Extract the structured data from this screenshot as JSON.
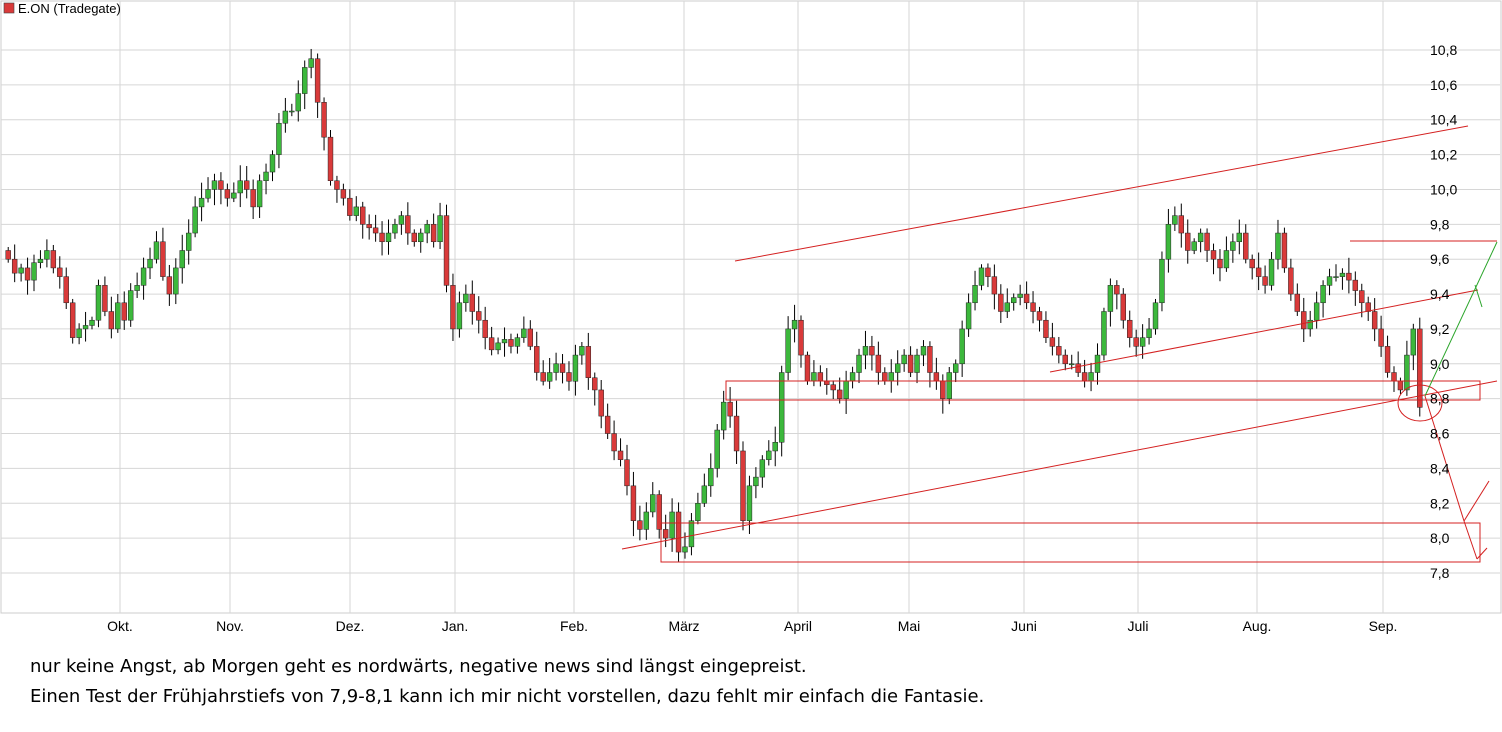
{
  "chart_data": {
    "type": "candlestick",
    "title": "E.ON (Tradegate)",
    "legend_color": "#d93a3a",
    "colors": {
      "up": "#3cb83c",
      "down": "#d93a3a",
      "wick": "#000000",
      "grid": "#d6d6d6",
      "drawing": "#d42020",
      "arrow_up": "#2aa52a"
    },
    "ylim": [
      7.65,
      10.95
    ],
    "y_ticks": [
      "10,8",
      "10,6",
      "10,4",
      "10,2",
      "10,0",
      "9,8",
      "9,6",
      "9,4",
      "9,2",
      "9,0",
      "8,8",
      "8,6",
      "8,4",
      "8,2",
      "8,0",
      "7,8"
    ],
    "y_tick_values": [
      10.8,
      10.6,
      10.4,
      10.2,
      10.0,
      9.8,
      9.6,
      9.4,
      9.2,
      9.0,
      8.8,
      8.6,
      8.4,
      8.2,
      8.0,
      7.8
    ],
    "x_ticks": [
      "Okt.",
      "Nov.",
      "Dez.",
      "Jan.",
      "Feb.",
      "März",
      "April",
      "Mai",
      "Juni",
      "Juli",
      "Aug.",
      "Sep."
    ],
    "closes": [
      9.6,
      9.52,
      9.55,
      9.48,
      9.58,
      9.6,
      9.65,
      9.55,
      9.5,
      9.35,
      9.15,
      9.2,
      9.22,
      9.25,
      9.45,
      9.3,
      9.2,
      9.35,
      9.25,
      9.42,
      9.45,
      9.55,
      9.6,
      9.7,
      9.5,
      9.4,
      9.55,
      9.65,
      9.75,
      9.9,
      9.95,
      10.0,
      10.05,
      10.0,
      9.95,
      9.98,
      10.05,
      10.0,
      9.9,
      10.05,
      10.1,
      10.2,
      10.38,
      10.45,
      10.45,
      10.55,
      10.7,
      10.75,
      10.5,
      10.3,
      10.05,
      10.0,
      9.95,
      9.85,
      9.9,
      9.8,
      9.78,
      9.75,
      9.7,
      9.75,
      9.8,
      9.85,
      9.75,
      9.7,
      9.75,
      9.8,
      9.7,
      9.85,
      9.45,
      9.2,
      9.35,
      9.4,
      9.3,
      9.25,
      9.15,
      9.08,
      9.12,
      9.14,
      9.1,
      9.15,
      9.2,
      9.1,
      8.95,
      8.9,
      8.95,
      9.0,
      8.95,
      8.9,
      9.05,
      9.1,
      8.92,
      8.85,
      8.7,
      8.6,
      8.5,
      8.45,
      8.3,
      8.1,
      8.05,
      8.15,
      8.25,
      8.05,
      8.0,
      8.15,
      7.92,
      7.95,
      8.1,
      8.2,
      8.3,
      8.4,
      8.62,
      8.78,
      8.7,
      8.5,
      8.1,
      8.3,
      8.35,
      8.45,
      8.5,
      8.55,
      8.95,
      9.2,
      9.25,
      9.05,
      8.9,
      8.95,
      8.9,
      8.88,
      8.85,
      8.8,
      8.9,
      8.95,
      9.05,
      9.1,
      9.05,
      8.95,
      8.9,
      8.95,
      9.0,
      9.05,
      8.95,
      9.05,
      9.1,
      8.95,
      8.9,
      8.8,
      8.95,
      9.0,
      9.2,
      9.35,
      9.45,
      9.55,
      9.5,
      9.4,
      9.3,
      9.35,
      9.38,
      9.4,
      9.35,
      9.3,
      9.25,
      9.15,
      9.1,
      9.05,
      9.0,
      9.0,
      8.95,
      8.9,
      8.95,
      9.05,
      9.3,
      9.45,
      9.4,
      9.25,
      9.15,
      9.1,
      9.15,
      9.2,
      9.35,
      9.6,
      9.8,
      9.85,
      9.75,
      9.65,
      9.7,
      9.75,
      9.65,
      9.6,
      9.55,
      9.65,
      9.7,
      9.75,
      9.6,
      9.55,
      9.5,
      9.45,
      9.6,
      9.75,
      9.55,
      9.4,
      9.3,
      9.2,
      9.25,
      9.35,
      9.45,
      9.5,
      9.5,
      9.52,
      9.48,
      9.42,
      9.35,
      9.3,
      9.2,
      9.1,
      8.95,
      8.9,
      8.85,
      9.05,
      9.2,
      8.75
    ]
  },
  "annotation": {
    "line1": "nur keine Angst, ab Morgen geht es nordwärts, negative news sind längst eingepreist.",
    "line2": "Einen Test der Frühjahrstiefs von 7,9-8,1 kann ich mir nicht vorstellen, dazu fehlt mir einfach die Fantasie."
  }
}
